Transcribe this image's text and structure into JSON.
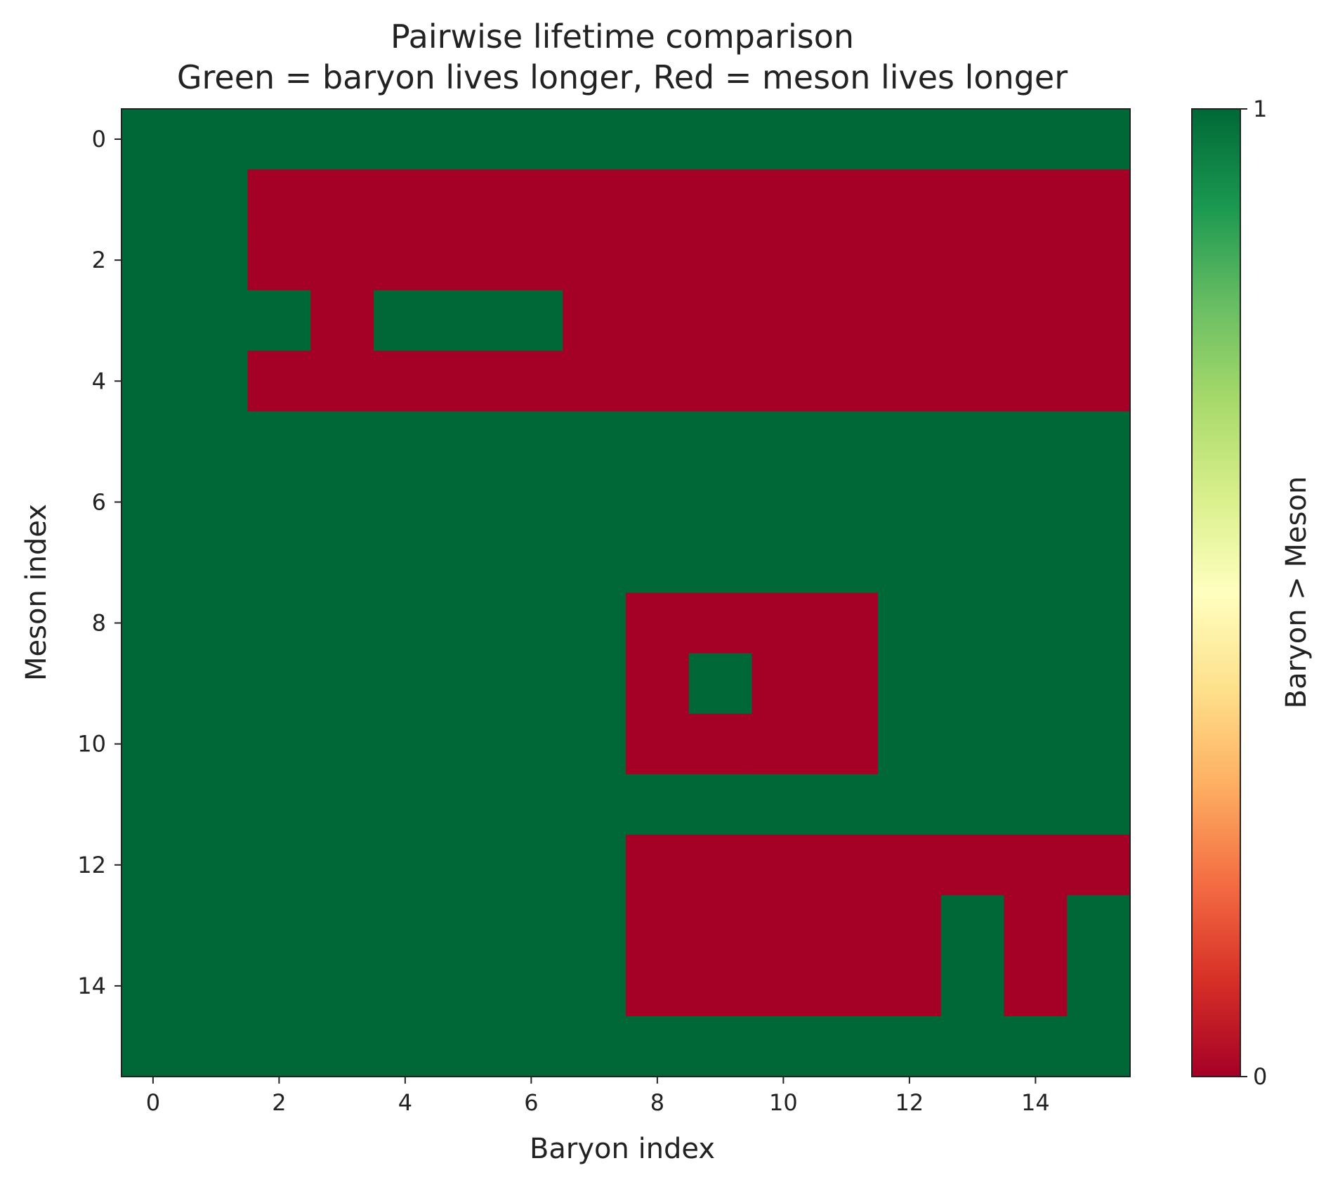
{
  "chart_data": {
    "type": "heatmap",
    "title": "Pairwise lifetime comparison",
    "subtitle": "Green = baryon lives longer, Red = meson lives longer",
    "xlabel": "Baryon index",
    "ylabel": "Meson index",
    "colorbar_label": "Baryon > Meson",
    "xticks": [
      "0",
      "2",
      "4",
      "6",
      "8",
      "10",
      "12",
      "14"
    ],
    "yticks": [
      "0",
      "2",
      "4",
      "6",
      "8",
      "10",
      "12",
      "14"
    ],
    "colorbar_ticks": [
      "0",
      "1"
    ],
    "value_range": [
      0,
      1
    ],
    "colormap": "RdYlGn",
    "colors": {
      "green": "#006837",
      "red": "#a50026",
      "colorbar_stops": [
        "#a50026",
        "#d73027",
        "#f46d43",
        "#fdae61",
        "#fee08b",
        "#ffffbf",
        "#d9ef8b",
        "#a6d96a",
        "#66bd63",
        "#1a9850",
        "#006837"
      ]
    },
    "n_rows": 16,
    "n_cols": 16,
    "matrix": [
      [
        1,
        1,
        1,
        1,
        1,
        1,
        1,
        1,
        1,
        1,
        1,
        1,
        1,
        1,
        1,
        1
      ],
      [
        1,
        1,
        0,
        0,
        0,
        0,
        0,
        0,
        0,
        0,
        0,
        0,
        0,
        0,
        0,
        0
      ],
      [
        1,
        1,
        0,
        0,
        0,
        0,
        0,
        0,
        0,
        0,
        0,
        0,
        0,
        0,
        0,
        0
      ],
      [
        1,
        1,
        1,
        0,
        1,
        1,
        1,
        0,
        0,
        0,
        0,
        0,
        0,
        0,
        0,
        0
      ],
      [
        1,
        1,
        0,
        0,
        0,
        0,
        0,
        0,
        0,
        0,
        0,
        0,
        0,
        0,
        0,
        0
      ],
      [
        1,
        1,
        1,
        1,
        1,
        1,
        1,
        1,
        1,
        1,
        1,
        1,
        1,
        1,
        1,
        1
      ],
      [
        1,
        1,
        1,
        1,
        1,
        1,
        1,
        1,
        1,
        1,
        1,
        1,
        1,
        1,
        1,
        1
      ],
      [
        1,
        1,
        1,
        1,
        1,
        1,
        1,
        1,
        1,
        1,
        1,
        1,
        1,
        1,
        1,
        1
      ],
      [
        1,
        1,
        1,
        1,
        1,
        1,
        1,
        1,
        0,
        0,
        0,
        0,
        1,
        1,
        1,
        1
      ],
      [
        1,
        1,
        1,
        1,
        1,
        1,
        1,
        1,
        0,
        1,
        0,
        0,
        1,
        1,
        1,
        1
      ],
      [
        1,
        1,
        1,
        1,
        1,
        1,
        1,
        1,
        0,
        0,
        0,
        0,
        1,
        1,
        1,
        1
      ],
      [
        1,
        1,
        1,
        1,
        1,
        1,
        1,
        1,
        1,
        1,
        1,
        1,
        1,
        1,
        1,
        1
      ],
      [
        1,
        1,
        1,
        1,
        1,
        1,
        1,
        1,
        0,
        0,
        0,
        0,
        0,
        0,
        0,
        0
      ],
      [
        1,
        1,
        1,
        1,
        1,
        1,
        1,
        1,
        0,
        0,
        0,
        0,
        0,
        1,
        0,
        1
      ],
      [
        1,
        1,
        1,
        1,
        1,
        1,
        1,
        1,
        0,
        0,
        0,
        0,
        0,
        1,
        0,
        1
      ],
      [
        1,
        1,
        1,
        1,
        1,
        1,
        1,
        1,
        1,
        1,
        1,
        1,
        1,
        1,
        1,
        1
      ]
    ]
  }
}
